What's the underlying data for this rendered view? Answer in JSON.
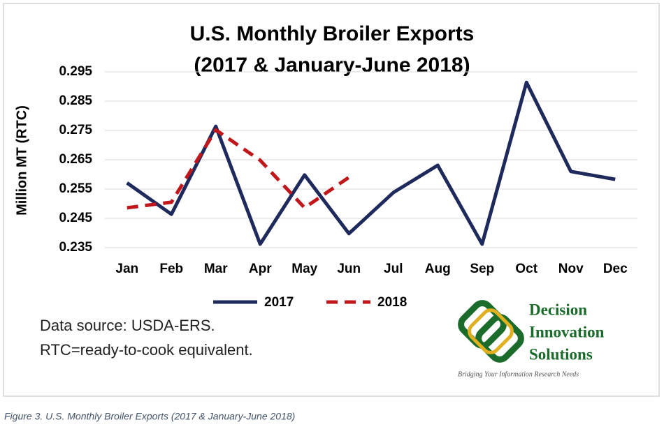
{
  "chart_data": {
    "type": "line",
    "title": [
      "U.S. Monthly Broiler Exports",
      "(2017 & January-June 2018)"
    ],
    "y_label": "Million MT (RTC)",
    "categories": [
      "Jan",
      "Feb",
      "Mar",
      "Apr",
      "May",
      "Jun",
      "Jul",
      "Aug",
      "Sep",
      "Oct",
      "Nov",
      "Dec"
    ],
    "series": [
      {
        "name": "2017",
        "color": "#1f2a5c",
        "dash": false,
        "values": [
          0.2571,
          0.2464,
          0.2764,
          0.2362,
          0.2598,
          0.2398,
          0.2538,
          0.2631,
          0.2362,
          0.2914,
          0.261,
          0.2583
        ]
      },
      {
        "name": "2018",
        "color": "#c0171c",
        "dash": true,
        "values": [
          0.2486,
          0.2505,
          0.2752,
          0.2648,
          0.2486,
          0.259,
          null,
          null,
          null,
          null,
          null,
          null
        ]
      }
    ],
    "ylim": [
      0.235,
      0.295
    ],
    "yticks": [
      0.235,
      0.245,
      0.255,
      0.265,
      0.275,
      0.285,
      0.295
    ],
    "grid": true,
    "legend": "bottom",
    "notes": [
      "Data source: USDA-ERS.",
      "RTC=ready-to-cook equivalent."
    ]
  },
  "logo": {
    "lines": [
      "Decision",
      "Innovation",
      "Solutions"
    ],
    "tagline": "Bridging Your Information Research Needs"
  },
  "caption": "Figure 3.  U.S. Monthly Broiler Exports (2017 & January-June 2018)"
}
